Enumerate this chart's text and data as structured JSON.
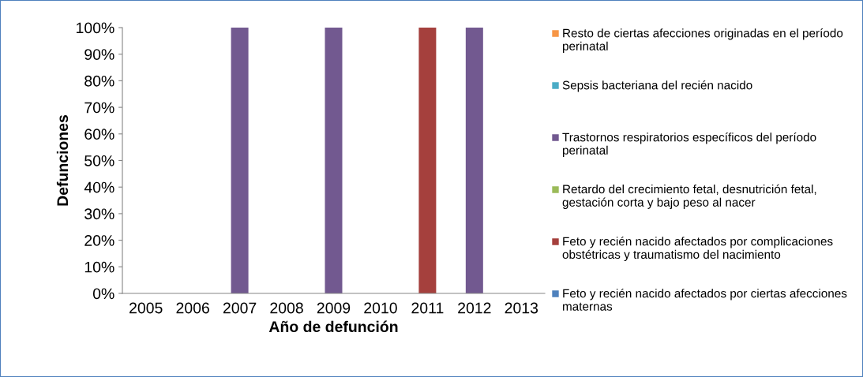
{
  "chart_data": {
    "type": "bar",
    "stacked": true,
    "xlabel": "Año de defunción",
    "ylabel": "Defunciones",
    "categories": [
      "2005",
      "2006",
      "2007",
      "2008",
      "2009",
      "2010",
      "2011",
      "2012",
      "2013"
    ],
    "series": [
      {
        "name": "Feto y recién nacido afectados por ciertas afecciones maternas",
        "color": "#4f81bd",
        "values": [
          0,
          0,
          0,
          0,
          0,
          0,
          0,
          0,
          0
        ]
      },
      {
        "name": "Feto y recién nacido afectados por complicaciones obstétricas y traumatismo del nacimiento",
        "color": "#a5403d",
        "values": [
          0,
          0,
          0,
          0,
          0,
          0,
          100,
          0,
          0
        ]
      },
      {
        "name": "Retardo del crecimiento fetal, desnutrición fetal, gestación corta y bajo peso al nacer",
        "color": "#9bbb59",
        "values": [
          0,
          0,
          0,
          0,
          0,
          0,
          0,
          0,
          0
        ]
      },
      {
        "name": "Trastornos respiratorios específicos del período perinatal",
        "color": "#725990",
        "values": [
          0,
          0,
          100,
          0,
          100,
          0,
          0,
          100,
          0
        ]
      },
      {
        "name": "Sepsis bacteriana del recién nacido",
        "color": "#4bacc6",
        "values": [
          0,
          0,
          0,
          0,
          0,
          0,
          0,
          0,
          0
        ]
      },
      {
        "name": "Resto de ciertas afecciones originadas en el período perinatal",
        "color": "#f79646",
        "values": [
          0,
          0,
          0,
          0,
          0,
          0,
          0,
          0,
          0
        ]
      }
    ],
    "ylim": [
      0,
      100
    ],
    "yticks": [
      {
        "value": 0,
        "label": "0%"
      },
      {
        "value": 10,
        "label": "10%"
      },
      {
        "value": 20,
        "label": "20%"
      },
      {
        "value": 30,
        "label": "30%"
      },
      {
        "value": 40,
        "label": "40%"
      },
      {
        "value": 50,
        "label": "50%"
      },
      {
        "value": 60,
        "label": "60%"
      },
      {
        "value": 70,
        "label": "70%"
      },
      {
        "value": 80,
        "label": "80%"
      },
      {
        "value": 90,
        "label": "90%"
      },
      {
        "value": 100,
        "label": "100%"
      }
    ],
    "grid": false,
    "legend": "right"
  }
}
